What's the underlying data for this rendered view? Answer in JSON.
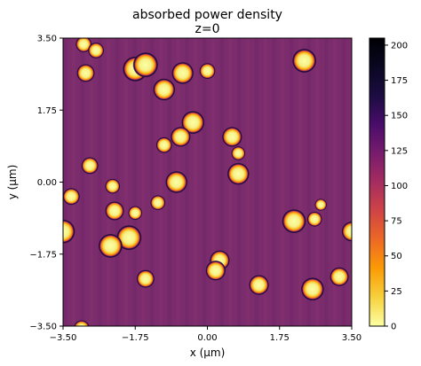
{
  "chart_data": {
    "type": "heatmap",
    "title_line1": "absorbed power density",
    "title_line2": "z=0",
    "xlabel": "x (µm)",
    "ylabel": "y (µm)",
    "xlim": [
      -3.5,
      3.5
    ],
    "ylim": [
      -3.5,
      3.5
    ],
    "xticks": [
      -3.5,
      -1.75,
      0.0,
      1.75,
      3.5
    ],
    "xtick_labels": [
      "−3.50",
      "−1.75",
      "0.00",
      "1.75",
      "3.50"
    ],
    "yticks": [
      3.5,
      1.75,
      0.0,
      -1.75,
      -3.5
    ],
    "ytick_labels": [
      "3.50",
      "1.75",
      "0.00",
      "−1.75",
      "−3.50"
    ],
    "background_value": 140,
    "colorbar": {
      "colormap": "inferno_r",
      "range": [
        0,
        205
      ],
      "ticks": [
        0,
        25,
        50,
        75,
        100,
        125,
        150,
        175,
        200
      ],
      "tick_labels": [
        "0",
        "25",
        "50",
        "75",
        "100",
        "125",
        "150",
        "175",
        "200"
      ]
    },
    "particles": [
      {
        "x": -3.0,
        "y": 3.35,
        "r": 0.16
      },
      {
        "x": -2.7,
        "y": 3.2,
        "r": 0.16
      },
      {
        "x": -2.95,
        "y": 2.65,
        "r": 0.18
      },
      {
        "x": -1.75,
        "y": 2.75,
        "r": 0.25
      },
      {
        "x": -1.5,
        "y": 2.85,
        "r": 0.25
      },
      {
        "x": -0.6,
        "y": 2.65,
        "r": 0.22
      },
      {
        "x": 0.0,
        "y": 2.7,
        "r": 0.16
      },
      {
        "x": -1.05,
        "y": 2.25,
        "r": 0.22
      },
      {
        "x": 2.35,
        "y": 2.95,
        "r": 0.24
      },
      {
        "x": -0.35,
        "y": 1.45,
        "r": 0.23
      },
      {
        "x": -0.65,
        "y": 1.1,
        "r": 0.2
      },
      {
        "x": -1.05,
        "y": 0.9,
        "r": 0.16
      },
      {
        "x": 0.6,
        "y": 1.1,
        "r": 0.2
      },
      {
        "x": 0.75,
        "y": 0.7,
        "r": 0.14
      },
      {
        "x": 0.75,
        "y": 0.2,
        "r": 0.22
      },
      {
        "x": -2.85,
        "y": 0.4,
        "r": 0.17
      },
      {
        "x": -0.75,
        "y": 0.0,
        "r": 0.22
      },
      {
        "x": -3.3,
        "y": -0.35,
        "r": 0.17
      },
      {
        "x": -2.3,
        "y": -0.1,
        "r": 0.15
      },
      {
        "x": -2.25,
        "y": -0.7,
        "r": 0.19
      },
      {
        "x": -1.75,
        "y": -0.75,
        "r": 0.14
      },
      {
        "x": -1.2,
        "y": -0.5,
        "r": 0.15
      },
      {
        "x": -3.5,
        "y": -1.2,
        "r": 0.24
      },
      {
        "x": -1.9,
        "y": -1.35,
        "r": 0.25
      },
      {
        "x": -2.35,
        "y": -1.55,
        "r": 0.24
      },
      {
        "x": -1.5,
        "y": -2.35,
        "r": 0.18
      },
      {
        "x": 2.1,
        "y": -0.95,
        "r": 0.24
      },
      {
        "x": 2.6,
        "y": -0.9,
        "r": 0.15
      },
      {
        "x": 2.75,
        "y": -0.55,
        "r": 0.12
      },
      {
        "x": 3.5,
        "y": -1.2,
        "r": 0.2
      },
      {
        "x": 0.3,
        "y": -1.9,
        "r": 0.2
      },
      {
        "x": 0.2,
        "y": -2.15,
        "r": 0.2
      },
      {
        "x": 1.25,
        "y": -2.5,
        "r": 0.2
      },
      {
        "x": 3.2,
        "y": -2.3,
        "r": 0.19
      },
      {
        "x": 2.55,
        "y": -2.6,
        "r": 0.23
      },
      {
        "x": -3.05,
        "y": -3.55,
        "r": 0.16
      }
    ]
  }
}
